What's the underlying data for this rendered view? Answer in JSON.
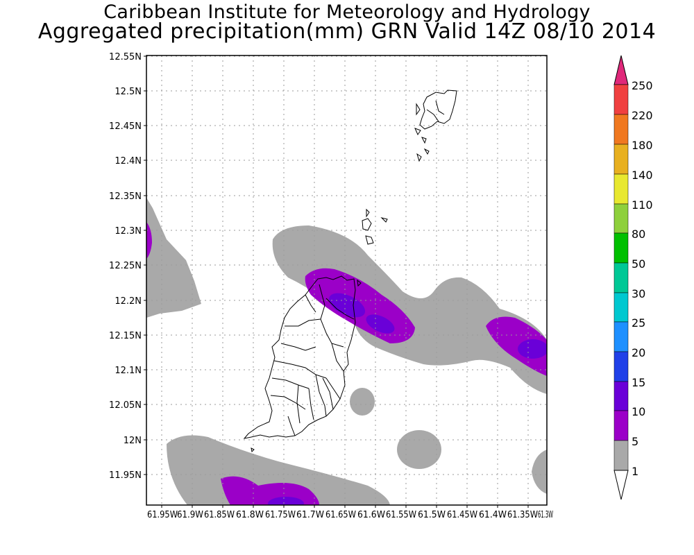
{
  "header": {
    "title_line1": "Caribbean Institute for Meteorology and Hydrology",
    "title_line2": "Aggregated precipitation(mm) GRN Valid 14Z 08/10 2014"
  },
  "map": {
    "lat_labels": [
      "12.55N",
      "12.5N",
      "12.45N",
      "12.4N",
      "12.35N",
      "12.3N",
      "12.25N",
      "12.2N",
      "12.15N",
      "12.1N",
      "12.05N",
      "12N",
      "11.95N"
    ],
    "lon_labels": [
      "61.95W",
      "61.9W",
      "61.85W",
      "61.8W",
      "61.75W",
      "61.7W",
      "61.65W",
      "61.6W",
      "61.55W",
      "61.5W",
      "61.45W",
      "61.4W",
      "61.35W",
      "61.3W"
    ]
  },
  "legend": {
    "levels": [
      "1",
      "5",
      "10",
      "15",
      "20",
      "25",
      "30",
      "50",
      "80",
      "110",
      "140",
      "180",
      "220",
      "250"
    ],
    "colors": [
      "#a9a9a9",
      "#9b00c8",
      "#6a00d8",
      "#2040e8",
      "#1e90ff",
      "#00c8d0",
      "#00c896",
      "#00c000",
      "#8ed03c",
      "#e8e830",
      "#e8b020",
      "#f07820",
      "#f04040",
      "#e0287a"
    ]
  }
}
